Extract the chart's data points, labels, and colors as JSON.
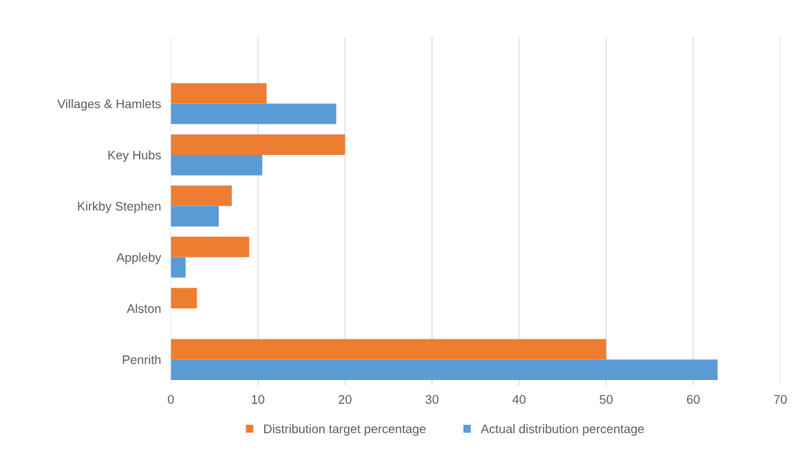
{
  "chart_data": {
    "type": "bar",
    "orientation": "horizontal",
    "categories": [
      "Villages & Hamlets",
      "Key Hubs",
      "Kirkby Stephen",
      "Appleby",
      "Alston",
      "Penrith"
    ],
    "series": [
      {
        "name": "Distribution target percentage",
        "color": "#ed7d31",
        "values": [
          11,
          20,
          7,
          9,
          3,
          50
        ]
      },
      {
        "name": "Actual distribution percentage",
        "color": "#5b9bd5",
        "values": [
          19,
          10.5,
          5.5,
          1.7,
          0,
          62.8
        ]
      }
    ],
    "xlim": [
      0,
      70
    ],
    "xticks": [
      0,
      10,
      20,
      30,
      40,
      50,
      60,
      70
    ],
    "grid": "x",
    "legend": "bottom"
  }
}
